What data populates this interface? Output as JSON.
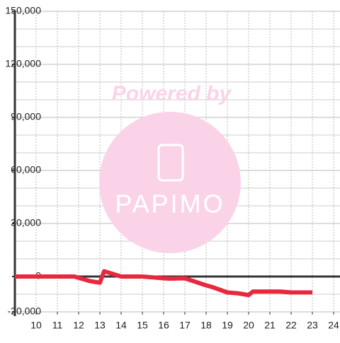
{
  "watermark": {
    "caption": "Powered by",
    "brand": "PAPIMO"
  },
  "chart_data": {
    "type": "line",
    "x": [
      9,
      11.8,
      12.5,
      13,
      13.2,
      14,
      15,
      15.5,
      16,
      16.3,
      17,
      17.5,
      18,
      18.3,
      19,
      19.5,
      20,
      20.2,
      21,
      21.5,
      22,
      23
    ],
    "series": [
      {
        "color": "#e8283c",
        "values": [
          0,
          0,
          -2500,
          -3500,
          3000,
          0,
          0,
          -500,
          -1000,
          -1200,
          -1000,
          -3000,
          -5000,
          -6000,
          -9000,
          -9500,
          -10500,
          -8500,
          -8500,
          -8500,
          -9000,
          -9000
        ]
      }
    ],
    "xlim": [
      9,
      24.3
    ],
    "xticks": [
      10,
      11,
      12,
      13,
      14,
      15,
      16,
      17,
      18,
      19,
      20,
      21,
      22,
      23,
      24
    ],
    "ylim": [
      -20000,
      150000
    ],
    "yticks": [
      {
        "value": -20000,
        "label": "-20,000"
      },
      0,
      {
        "value": 30000,
        "label": "30,000"
      },
      {
        "value": 60000,
        "label": "60,000"
      },
      {
        "value": 90000,
        "label": "90,000"
      },
      {
        "value": 120000,
        "label": "120,000"
      },
      {
        "value": 150000,
        "label": "150,000"
      }
    ],
    "y_minor_ticks": [
      -10000,
      10000,
      20000,
      40000,
      50000,
      70000,
      80000,
      100000,
      110000,
      130000,
      140000
    ],
    "grid": true
  }
}
